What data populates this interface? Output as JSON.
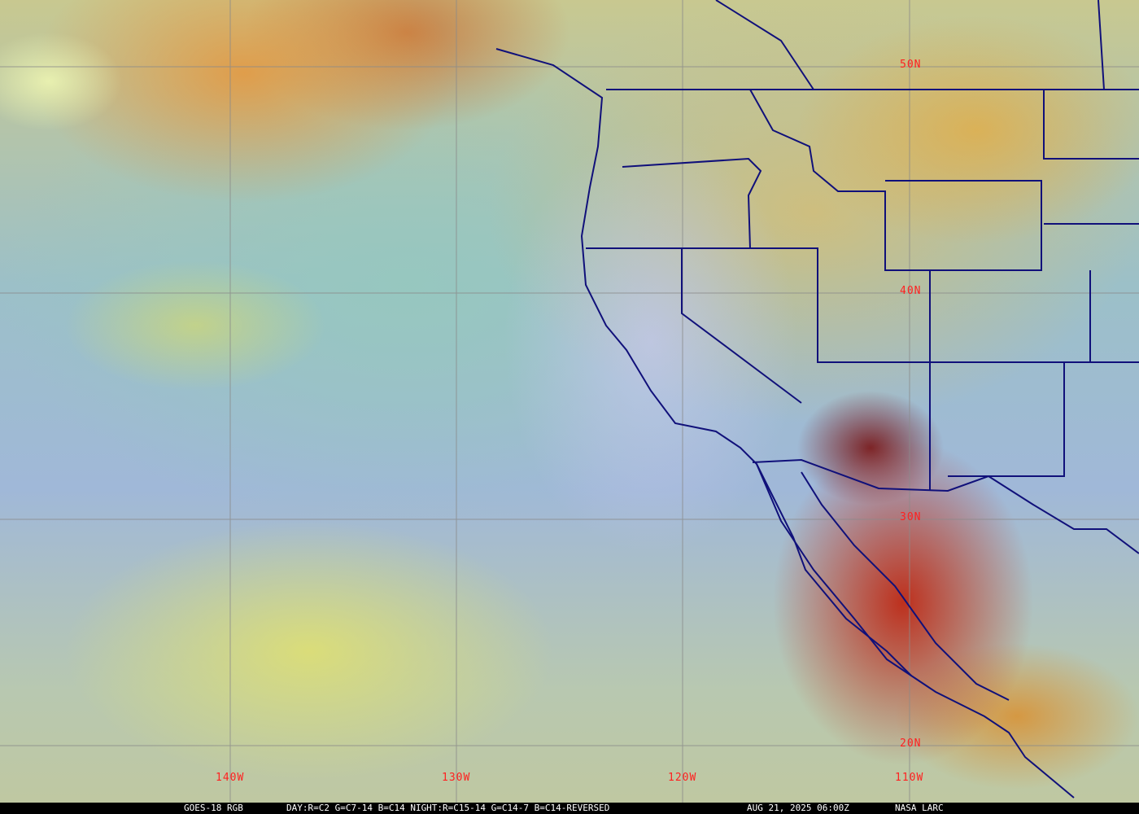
{
  "map": {
    "latitude_labels": [
      "50N",
      "40N",
      "30N",
      "20N"
    ],
    "longitude_labels": [
      "140W",
      "130W",
      "120W",
      "110W"
    ],
    "grid_color": "#8a8a8a",
    "border_color": "#10107a",
    "label_color": "#ff2020"
  },
  "caption": {
    "product": "GOES-18 RGB",
    "recipe": "DAY:R=C2 G=C7-14 B=C14 NIGHT:R=C15-14 G=C14-7 B=C14-REVERSED",
    "datetime": "AUG 21, 2025 06:00Z",
    "source": "NASA LARC"
  }
}
